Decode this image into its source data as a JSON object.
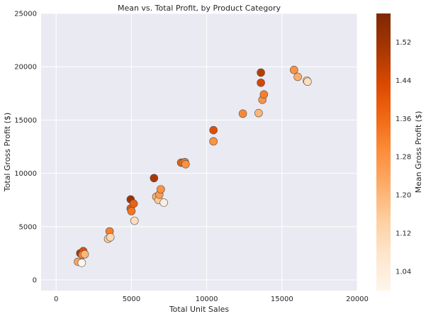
{
  "chart_data": {
    "type": "scatter",
    "title": "Mean vs. Total Profit, by Product Category",
    "xlabel": "Total Unit Sales",
    "ylabel": "Total Gross Profit ($)",
    "xlim": [
      -1000,
      20000
    ],
    "ylim": [
      -1000,
      25000
    ],
    "xticks": [
      0,
      5000,
      10000,
      15000,
      20000
    ],
    "xtick_labels": [
      "0",
      "5000",
      "10000",
      "15000",
      "20000"
    ],
    "yticks": [
      0,
      5000,
      10000,
      15000,
      20000,
      25000
    ],
    "ytick_labels": [
      "0",
      "5000",
      "10000",
      "15000",
      "20000",
      "25000"
    ],
    "grid": true,
    "background_color": "#eaeaf2",
    "grid_color": "#ffffff",
    "colormap": "Oranges",
    "colormap_stops": [
      "#fff5eb",
      "#fee6ce",
      "#fdd0a2",
      "#fdae6b",
      "#fd8d3c",
      "#f16913",
      "#d94801",
      "#a63603",
      "#7f2704"
    ],
    "colorbar": {
      "label": "Mean Gross Profit ($)",
      "range": [
        1.0,
        1.58
      ],
      "ticks": [
        1.04,
        1.12,
        1.2,
        1.28,
        1.36,
        1.44,
        1.52
      ],
      "tick_labels": [
        "1.04",
        "1.12",
        "1.20",
        "1.28",
        "1.36",
        "1.44",
        "1.52"
      ]
    },
    "points": [
      {
        "x": 1450,
        "y": 1700,
        "c": 1.24
      },
      {
        "x": 1600,
        "y": 2500,
        "c": 1.5
      },
      {
        "x": 1700,
        "y": 1600,
        "c": 1.0
      },
      {
        "x": 1800,
        "y": 2700,
        "c": 1.42
      },
      {
        "x": 1750,
        "y": 2350,
        "c": 1.3
      },
      {
        "x": 1900,
        "y": 2400,
        "c": 1.2
      },
      {
        "x": 3450,
        "y": 3850,
        "c": 1.16
      },
      {
        "x": 3550,
        "y": 4550,
        "c": 1.32
      },
      {
        "x": 3600,
        "y": 4000,
        "c": 1.12
      },
      {
        "x": 4950,
        "y": 7550,
        "c": 1.52
      },
      {
        "x": 4950,
        "y": 6700,
        "c": 1.4
      },
      {
        "x": 5000,
        "y": 6450,
        "c": 1.34
      },
      {
        "x": 5150,
        "y": 7150,
        "c": 1.38
      },
      {
        "x": 5200,
        "y": 5550,
        "c": 1.1
      },
      {
        "x": 6500,
        "y": 9550,
        "c": 1.5
      },
      {
        "x": 6650,
        "y": 7800,
        "c": 1.22
      },
      {
        "x": 6800,
        "y": 7500,
        "c": 1.16
      },
      {
        "x": 6850,
        "y": 8000,
        "c": 1.26
      },
      {
        "x": 6950,
        "y": 8500,
        "c": 1.28
      },
      {
        "x": 7150,
        "y": 7250,
        "c": 1.04
      },
      {
        "x": 8300,
        "y": 11000,
        "c": 1.38
      },
      {
        "x": 8450,
        "y": 11000,
        "c": 1.32
      },
      {
        "x": 8550,
        "y": 11050,
        "c": 1.34
      },
      {
        "x": 8600,
        "y": 10850,
        "c": 1.28
      },
      {
        "x": 10450,
        "y": 14050,
        "c": 1.42
      },
      {
        "x": 10450,
        "y": 13000,
        "c": 1.28
      },
      {
        "x": 12400,
        "y": 15600,
        "c": 1.3
      },
      {
        "x": 13450,
        "y": 15650,
        "c": 1.2
      },
      {
        "x": 13600,
        "y": 19450,
        "c": 1.48
      },
      {
        "x": 13600,
        "y": 18500,
        "c": 1.44
      },
      {
        "x": 13700,
        "y": 16900,
        "c": 1.28
      },
      {
        "x": 13800,
        "y": 17400,
        "c": 1.32
      },
      {
        "x": 15800,
        "y": 19700,
        "c": 1.28
      },
      {
        "x": 16050,
        "y": 19050,
        "c": 1.22
      },
      {
        "x": 16650,
        "y": 18700,
        "c": 1.16
      },
      {
        "x": 16700,
        "y": 18600,
        "c": 1.1
      }
    ]
  }
}
